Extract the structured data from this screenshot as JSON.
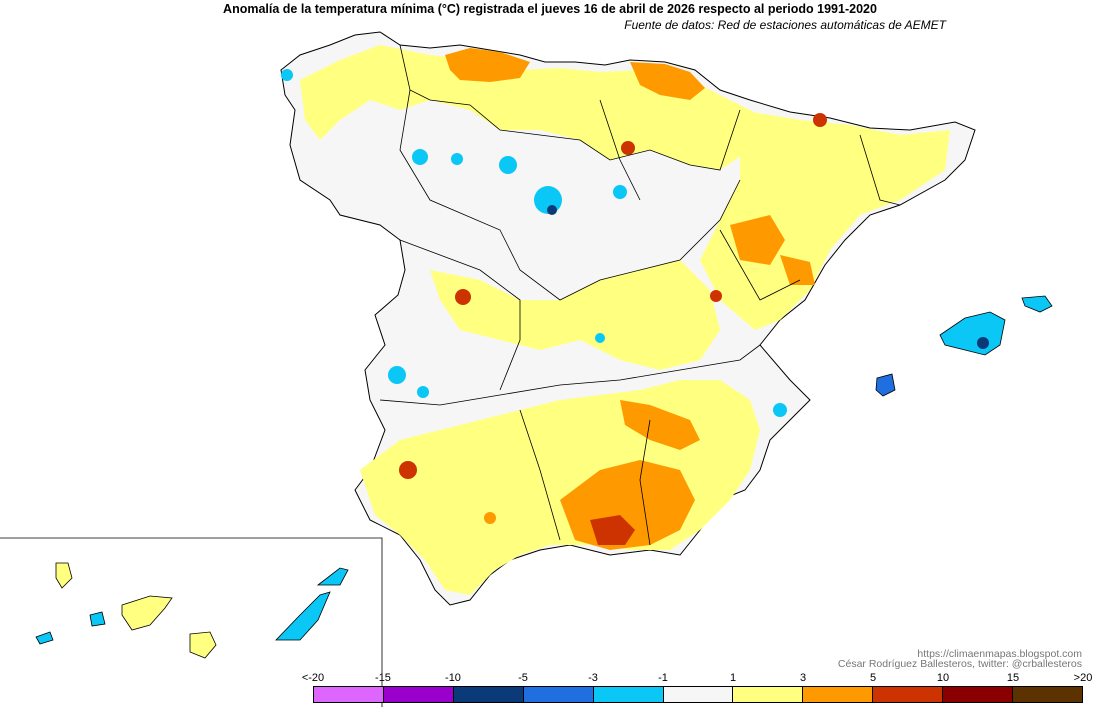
{
  "header": {
    "title": "Anomalía de la temperatura mínima (°C) registrada el jueves 16 de abril de 2026 respecto al periodo 1991-2020",
    "source": "Fuente de datos: Red de estaciones automáticas de AEMET"
  },
  "credits": {
    "url": "https://climaenmapas.blogspot.com",
    "author": "César Rodríguez Ballesteros, twitter: @crballesteros"
  },
  "legend": {
    "labels": [
      "<-20",
      "-15",
      "-10",
      "-5",
      "-3",
      "-1",
      "1",
      "3",
      "5",
      "10",
      "15",
      ">20"
    ],
    "colors": [
      "#dd66ff",
      "#9900cc",
      "#0b3a78",
      "#1f6fe0",
      "#0ac7f5",
      "#f6f6f6",
      "#ffff80",
      "#ff9900",
      "#cc3300",
      "#8a0000",
      "#5c3300"
    ],
    "bins": [
      {
        "range": "<-20 a -15",
        "color": "#dd66ff"
      },
      {
        "range": "-15 a -10",
        "color": "#9900cc"
      },
      {
        "range": "-10 a -5",
        "color": "#0b3a78"
      },
      {
        "range": "-5 a -3",
        "color": "#1f6fe0"
      },
      {
        "range": "-3 a -1",
        "color": "#0ac7f5"
      },
      {
        "range": "-1 a 1",
        "color": "#f6f6f6"
      },
      {
        "range": "1 a 3",
        "color": "#ffff80"
      },
      {
        "range": "3 a 5",
        "color": "#ff9900"
      },
      {
        "range": "5 a 10",
        "color": "#cc3300"
      },
      {
        "range": "10 a 15",
        "color": "#8a0000"
      },
      {
        "range": "15 a >20",
        "color": "#5c3300"
      }
    ]
  },
  "map_colors": {
    "neutral": "#f6f6f6",
    "warm1": "#ffff80",
    "warm2": "#ff9900",
    "warm3": "#cc3300",
    "cold1": "#0ac7f5",
    "cold2": "#1f6fe0",
    "cold3": "#0b3a78",
    "border": "#000000"
  }
}
